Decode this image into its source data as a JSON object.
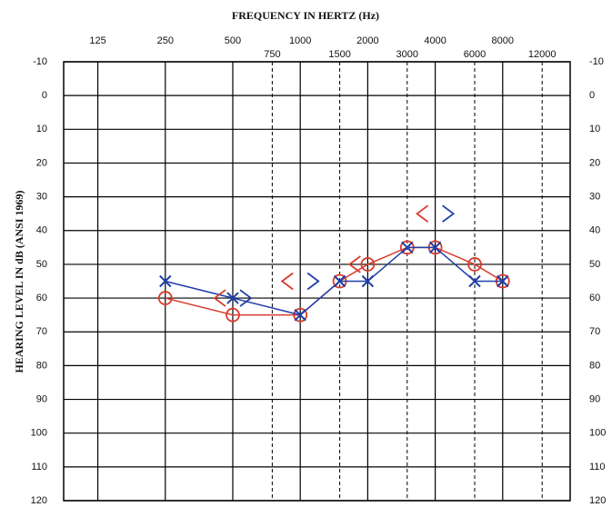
{
  "chart_data": {
    "type": "line",
    "title": "FREQUENCY IN HERTZ (Hz)",
    "y_label": "HEARING LEVEL IN dB (ANSI 1969)",
    "xscale": "log",
    "xlim": [
      88,
      16000
    ],
    "xticks": [
      125,
      250,
      500,
      1000,
      2000,
      4000,
      8000
    ],
    "xticks_minor": [
      750,
      1500,
      3000,
      6000,
      12000
    ],
    "ylim": [
      -10,
      120
    ],
    "y_reversed": true,
    "yticks": [
      -10,
      0,
      10,
      20,
      30,
      40,
      50,
      60,
      70,
      80,
      90,
      100,
      110,
      120
    ],
    "grid": true,
    "series": [
      {
        "color": "#d93a2b",
        "marker": "circle",
        "line": true,
        "x": [
          250,
          500,
          1000,
          1500,
          2000,
          3000,
          4000,
          6000,
          8000
        ],
        "values": [
          60,
          65,
          65,
          55,
          50,
          45,
          45,
          50,
          55
        ]
      },
      {
        "color": "#1f3fa8",
        "marker": "cross",
        "line": true,
        "x": [
          250,
          500,
          1000,
          1500,
          2000,
          3000,
          4000,
          6000,
          8000
        ],
        "values": [
          55,
          60,
          65,
          55,
          55,
          45,
          45,
          55,
          55
        ]
      },
      {
        "color": "#d93a2b",
        "marker": "left-angle",
        "line": false,
        "x": [
          500,
          1000,
          2000,
          4000
        ],
        "values": [
          60,
          55,
          50,
          35
        ]
      },
      {
        "color": "#1f3fa8",
        "marker": "right-angle",
        "line": false,
        "x": [
          500,
          1000,
          4000
        ],
        "values": [
          60,
          55,
          35
        ]
      }
    ]
  }
}
